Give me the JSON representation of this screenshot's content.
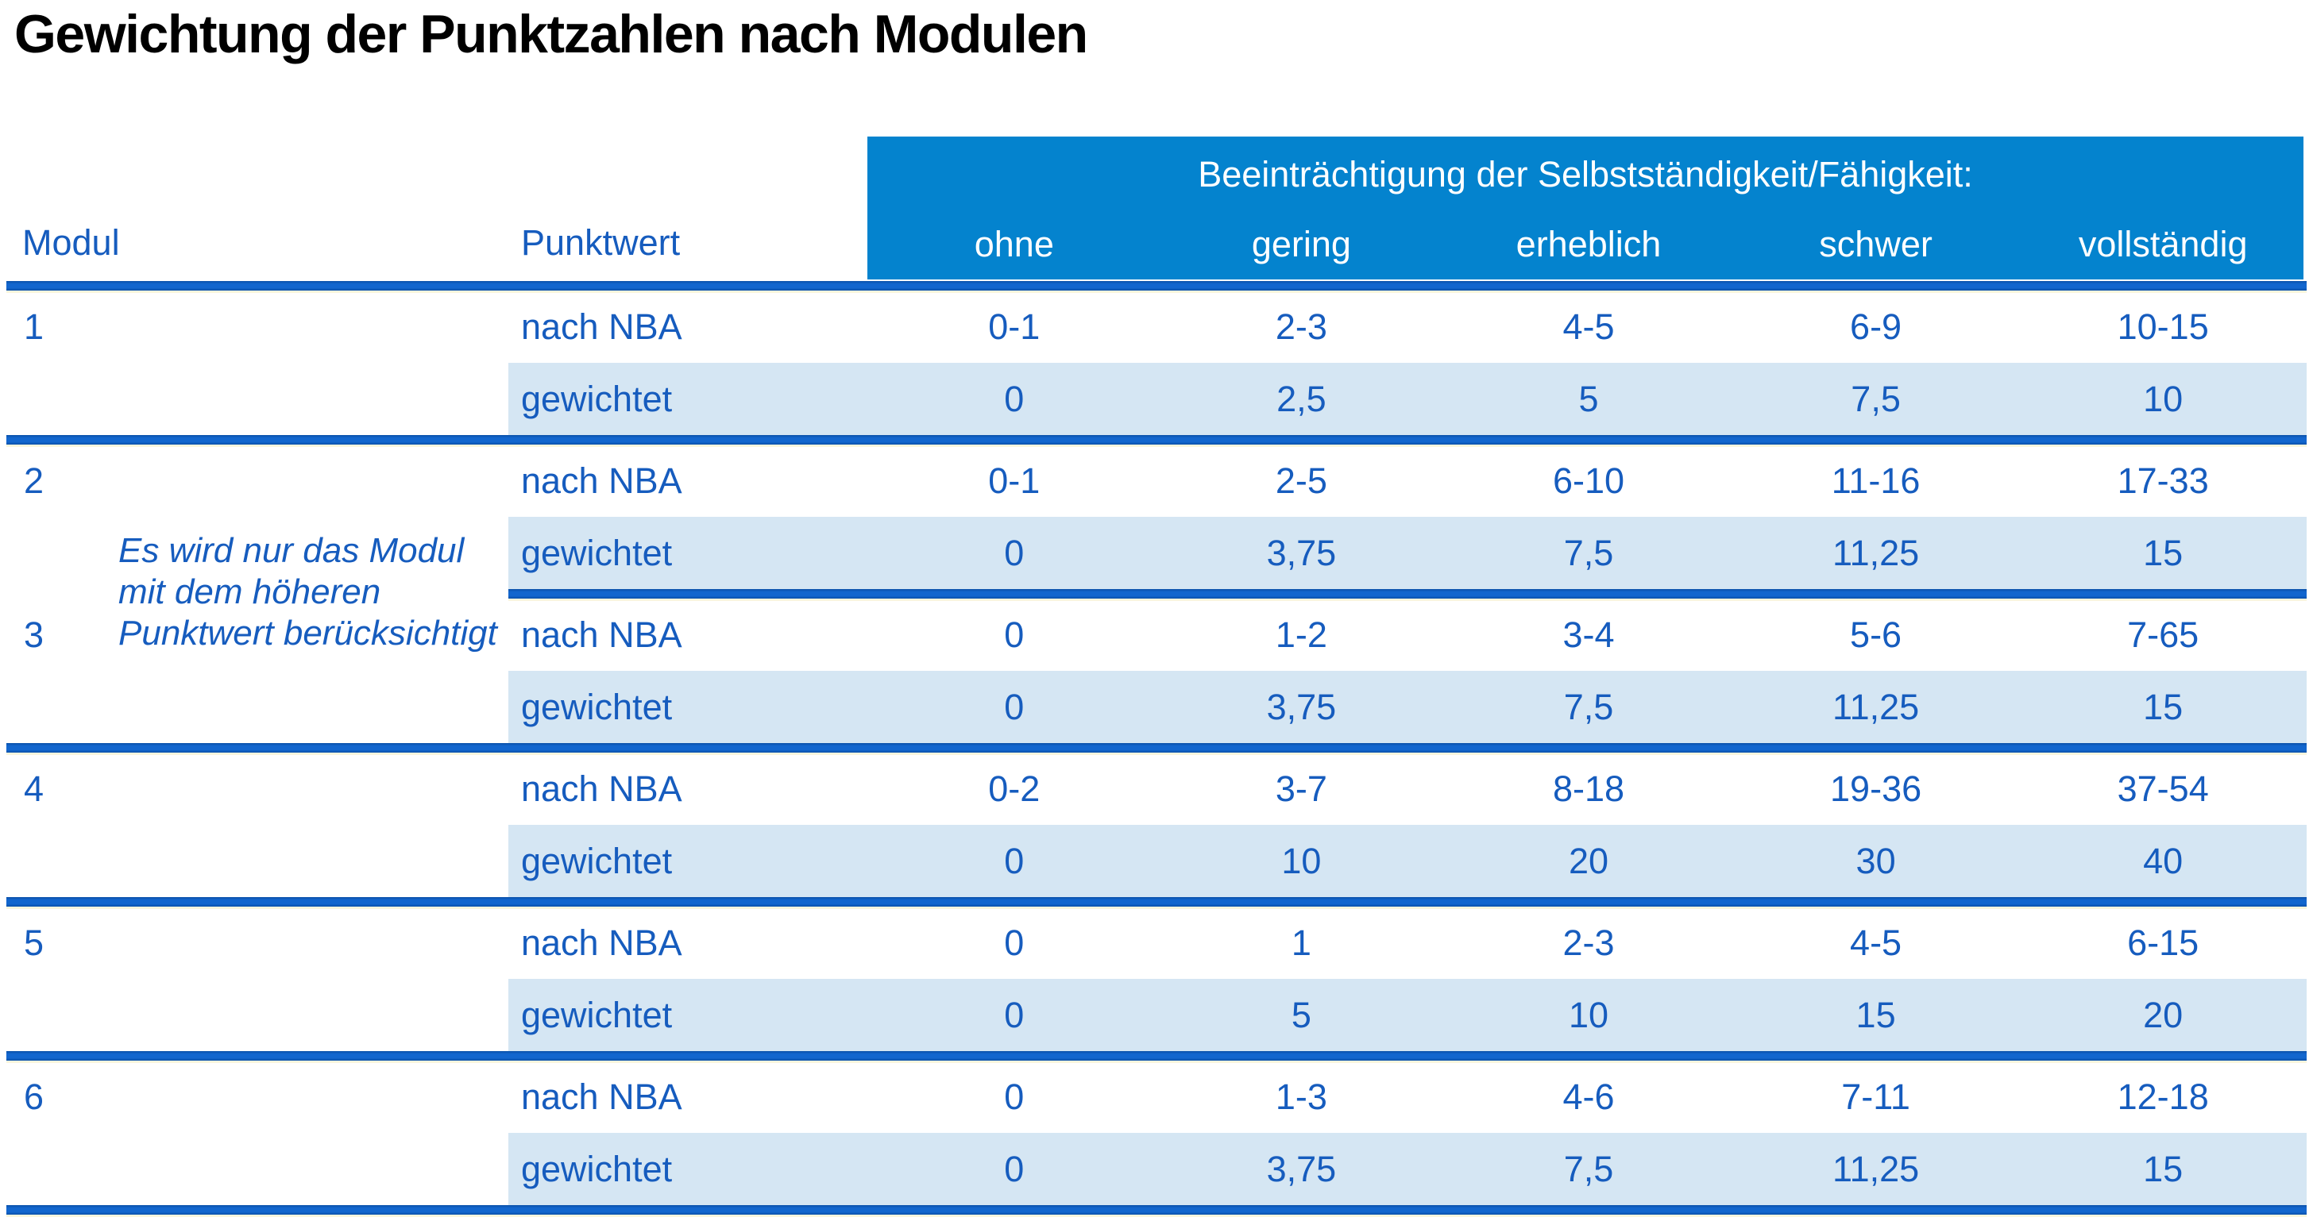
{
  "title": "Gewichtung der Punktzahlen nach Modulen",
  "table": {
    "modul_header": "Modul",
    "punktwert_header": "Punktwert",
    "impairment_header": "Beeinträchtigung der Selbstständigkeit/Fähigkeit:",
    "severity_levels": [
      "ohne",
      "gering",
      "erheblich",
      "schwer",
      "vollständig"
    ],
    "nba_label": "nach NBA",
    "weighted_label": "gewichtet",
    "note_lines": [
      "Es wird nur das Modul",
      "mit dem höheren",
      "Punktwert berücksichtigt"
    ],
    "modules": [
      {
        "id": "1",
        "nba": [
          "0-1",
          "2-3",
          "4-5",
          "6-9",
          "10-15"
        ],
        "weighted": [
          "0",
          "2,5",
          "5",
          "7,5",
          "10"
        ]
      },
      {
        "id": "2",
        "nba": [
          "0-1",
          "2-5",
          "6-10",
          "11-16",
          "17-33"
        ],
        "weighted": [
          "0",
          "3,75",
          "7,5",
          "11,25",
          "15"
        ]
      },
      {
        "id": "3",
        "nba": [
          "0",
          "1-2",
          "3-4",
          "5-6",
          "7-65"
        ],
        "weighted": [
          "0",
          "3,75",
          "7,5",
          "11,25",
          "15"
        ]
      },
      {
        "id": "4",
        "nba": [
          "0-2",
          "3-7",
          "8-18",
          "19-36",
          "37-54"
        ],
        "weighted": [
          "0",
          "10",
          "20",
          "30",
          "40"
        ]
      },
      {
        "id": "5",
        "nba": [
          "0",
          "1",
          "2-3",
          "4-5",
          "6-15"
        ],
        "weighted": [
          "0",
          "5",
          "10",
          "15",
          "20"
        ]
      },
      {
        "id": "6",
        "nba": [
          "0",
          "1-3",
          "4-6",
          "7-11",
          "12-18"
        ],
        "weighted": [
          "0",
          "3,75",
          "7,5",
          "11,25",
          "15"
        ]
      }
    ]
  },
  "colors": {
    "header_bg": "#0483CE",
    "rule_blue": "#1266CE",
    "band_bg": "#D5E6F3",
    "text_blue": "#165CBE",
    "cream_line": "#FAF5DD"
  }
}
